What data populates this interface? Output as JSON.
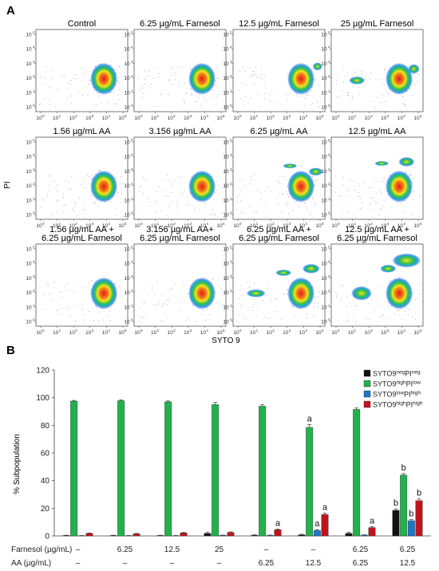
{
  "panel_a": {
    "letter": "A",
    "y_axis_title": "PI",
    "x_axis_title": "SYTO 9",
    "tick_base": "10",
    "tick_exponents": [
      "0",
      "1",
      "2",
      "3",
      "4",
      "5"
    ],
    "plots": [
      {
        "title": "Control",
        "title2": ""
      },
      {
        "title": "6.25 µg/mL Farnesol",
        "title2": ""
      },
      {
        "title": "12.5 µg/mL Farnesol",
        "title2": ""
      },
      {
        "title": "25 µg/mL Farnesol",
        "title2": ""
      },
      {
        "title": "1.56 µg/mL AA",
        "title2": ""
      },
      {
        "title": "3.156 µg/mL AA",
        "title2": ""
      },
      {
        "title": "6.25 µg/mL AA",
        "title2": ""
      },
      {
        "title": "12.5 µg/mL AA",
        "title2": ""
      },
      {
        "title": "1.56 µg/mL AA +",
        "title2": "6.25 µg/mL Farnesol"
      },
      {
        "title": "3.156 µg/mL AA+",
        "title2": "6.25 µg/mL Farnesol"
      },
      {
        "title": "6.25 µg/mL AA +",
        "title2": "6.25 µg/mL Farnesol"
      },
      {
        "title": "12.5 µg/mL AA +",
        "title2": "6.25 µg/mL Farnesol"
      }
    ]
  },
  "chart_data": {
    "type": "bar",
    "panel_letter": "B",
    "ylabel": "% Subpopulation",
    "ylim": [
      0,
      120
    ],
    "yticks": [
      0,
      20,
      40,
      60,
      80,
      100,
      120
    ],
    "row_labels": [
      "Farnesol (µg/mL)",
      "AA (µg/mL)"
    ],
    "farnesol": [
      "–",
      "6.25",
      "12.5",
      "25",
      "–",
      "–",
      "6.25",
      "6.25"
    ],
    "aa": [
      "–",
      "–",
      "–",
      "–",
      "6.25",
      "12.5",
      "6.25",
      "12.5"
    ],
    "series": [
      {
        "base": "SYTO9",
        "sup1": "neg",
        "mid": "PI",
        "sup2": "neg",
        "color": "#111111",
        "values": [
          0.3,
          0.3,
          0.3,
          1.8,
          0.5,
          0.8,
          1.8,
          18.5
        ],
        "errors": [
          0.2,
          0.2,
          0.2,
          0.8,
          0.3,
          0.4,
          0.8,
          1.0
        ],
        "letters": [
          "",
          "",
          "",
          "",
          "",
          "",
          "",
          "b"
        ]
      },
      {
        "base": "SYTO9",
        "sup1": "high",
        "mid": "PI",
        "sup2": "low",
        "color": "#22b24c",
        "values": [
          97.5,
          97.8,
          97.0,
          95.0,
          93.8,
          78.5,
          91.5,
          44.0
        ],
        "errors": [
          0.5,
          0.5,
          0.6,
          1.5,
          1.0,
          2.0,
          1.0,
          1.0
        ],
        "letters": [
          "",
          "",
          "",
          "",
          "",
          "a",
          "",
          "b"
        ]
      },
      {
        "base": "SYTO9",
        "sup1": "low",
        "mid": "PI",
        "sup2": "high",
        "color": "#1f77c9",
        "values": [
          0.2,
          0.2,
          0.2,
          0.4,
          0.4,
          4.0,
          0.6,
          11.0
        ],
        "errors": [
          0.1,
          0.1,
          0.1,
          0.2,
          0.2,
          0.6,
          0.2,
          0.8
        ],
        "letters": [
          "",
          "",
          "",
          "",
          "",
          "a",
          "",
          "b"
        ]
      },
      {
        "base": "SYTO9",
        "sup1": "high",
        "mid": "PI",
        "sup2": "high",
        "color": "#c0141c",
        "values": [
          1.8,
          1.5,
          2.2,
          2.5,
          4.5,
          15.5,
          6.0,
          25.5
        ],
        "errors": [
          0.3,
          0.3,
          0.3,
          0.4,
          0.5,
          1.0,
          0.6,
          1.2
        ],
        "letters": [
          "",
          "",
          "",
          "",
          "a",
          "a",
          "a",
          "b"
        ]
      }
    ],
    "legend_position": "top-right"
  }
}
